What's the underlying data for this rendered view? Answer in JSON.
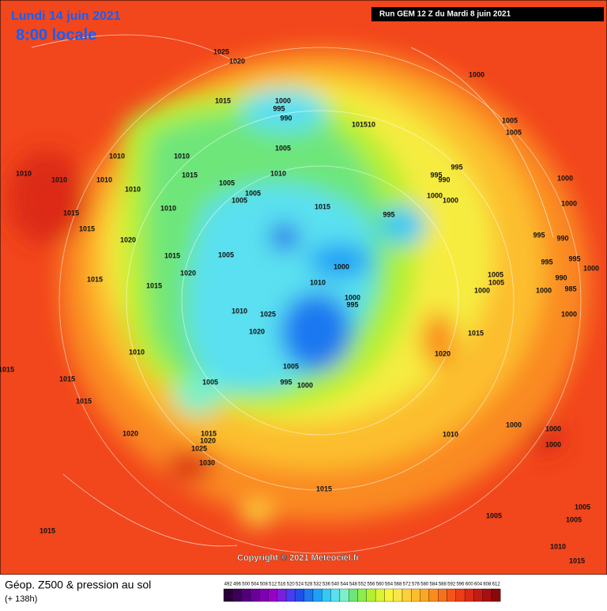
{
  "header": {
    "date": "Lundi 14 juin 2021",
    "time": "8:00 locale",
    "run": "Run GEM 12 Z du Mardi 8 juin 2021"
  },
  "copyright": "Copyright © 2021 Meteociel.fr",
  "footer": {
    "title": "Géop. Z500 & pression au sol",
    "lead": "(+ 138h)"
  },
  "scale": {
    "values": [
      492,
      496,
      500,
      504,
      508,
      512,
      516,
      520,
      524,
      528,
      532,
      536,
      540,
      544,
      548,
      552,
      556,
      560,
      564,
      568,
      572,
      576,
      580,
      584,
      588,
      592,
      596,
      600,
      604,
      608,
      612
    ],
    "colors": [
      "#2a0038",
      "#3c0058",
      "#520078",
      "#6a0098",
      "#8200b4",
      "#9a00c8",
      "#7a1ee0",
      "#4a3cf0",
      "#1f4fe6",
      "#1e78f0",
      "#1ea0f5",
      "#34c8f5",
      "#5ae0f0",
      "#7cf0c8",
      "#6ee67a",
      "#8cee4a",
      "#b4f032",
      "#d8f432",
      "#f6f53c",
      "#fbe64a",
      "#fcd23c",
      "#fcbe2e",
      "#fba624",
      "#fa8c1e",
      "#f8701c",
      "#f4561a",
      "#ec3c18",
      "#dc2a16",
      "#c41c14",
      "#a81010",
      "#8a0808"
    ]
  },
  "isobar_labels": [
    "1025",
    "1020",
    "1000",
    "1000",
    "995",
    "990",
    "1015",
    "101510",
    "1005",
    "1005",
    "1005",
    "1010",
    "1010",
    "1010",
    "1010",
    "1010",
    "1010",
    "1015",
    "1005",
    "1005",
    "1005",
    "1010",
    "995",
    "990",
    "995",
    "1000",
    "1000",
    "1000",
    "1000",
    "1015",
    "995",
    "1015",
    "1015",
    "1010",
    "1020",
    "1015",
    "1005",
    "1020",
    "995",
    "990",
    "995",
    "995",
    "1000",
    "1000",
    "1005",
    "1005",
    "990",
    "1015",
    "1015",
    "1000",
    "1000",
    "985",
    "1010",
    "1000",
    "995",
    "1010",
    "1025",
    "1000",
    "1020",
    "1015",
    "1010",
    "1020",
    "1005",
    "1015",
    "1005",
    "995",
    "1000",
    "1015",
    "1015",
    "1020",
    "1015",
    "1020",
    "1010",
    "1000",
    "1000",
    "1000",
    "1025",
    "1030",
    "1015",
    "1005",
    "1005",
    "1005",
    "1015",
    "1010",
    "1015"
  ]
}
